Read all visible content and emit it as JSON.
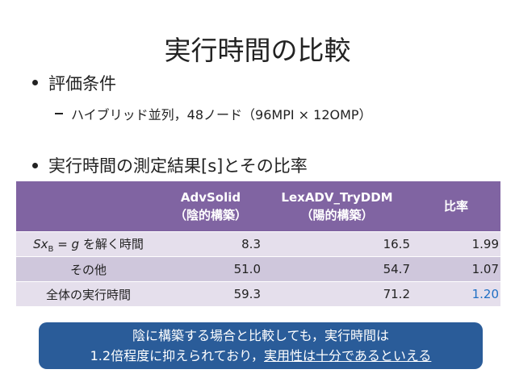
{
  "title": "実行時間の比較",
  "bullets": [
    {
      "text": "評価条件",
      "sub": "ハイブリッド並列，48ノード（96MPI × 12OMP）"
    },
    {
      "text": "実行時間の測定結果[s]とその比率"
    }
  ],
  "table": {
    "header": [
      [
        "AdvSolid",
        "（陰的構築）"
      ],
      [
        "LexADV_TryDDM",
        "（陽的構築）"
      ],
      [
        "比率"
      ]
    ],
    "rows": [
      {
        "label": [
          "Sx",
          "B",
          " = ",
          "g",
          " を解く時間"
        ],
        "cells": [
          "8.3",
          "16.5",
          "1.99"
        ]
      },
      {
        "label": [
          "その他"
        ],
        "cells": [
          "51.0",
          "54.7",
          "1.07"
        ]
      },
      {
        "label": [
          "全体の実行時間"
        ],
        "cells": [
          "59.3",
          "71.2",
          "1.20"
        ]
      }
    ]
  },
  "callout": {
    "line1": "陰に構築する場合と比較しても，実行時間は",
    "line2": "1.2倍程度に抑えられており，",
    "emphasis": "実用性は十分であるといえる"
  }
}
